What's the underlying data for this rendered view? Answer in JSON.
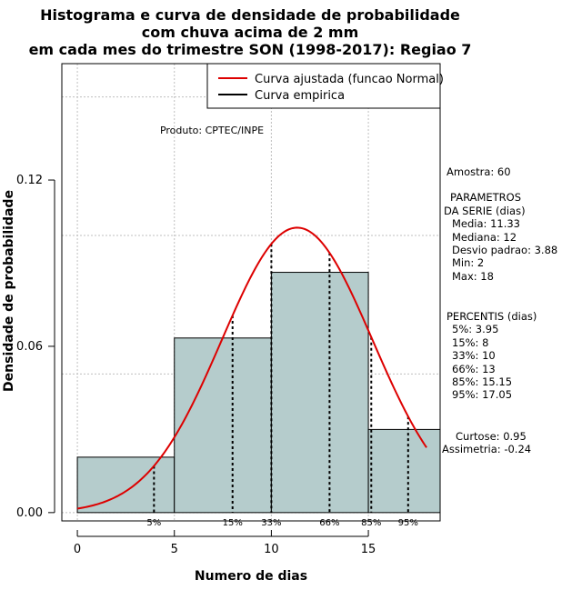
{
  "chart_data": {
    "type": "bar",
    "title": [
      "Histograma e curva de densidade de probabilidade",
      "com chuva acima de 2 mm",
      "em cada mes do trimestre SON (1998-2017): Regiao 7"
    ],
    "xlabel": "Numero de dias",
    "ylabel": "Densidade de probabilidade",
    "xlim": [
      -0.8,
      18.7
    ],
    "ylim": [
      -0.003,
      0.162
    ],
    "x_ticks": [
      0,
      5,
      10,
      15
    ],
    "y_ticks": [
      0.0,
      0.06,
      0.12
    ],
    "y_tick_labels": [
      "0.00",
      "0.06",
      "0.12"
    ],
    "grid": true,
    "legend_position": "top-right",
    "bins": [
      {
        "from": 0,
        "to": 5,
        "density": 0.02
      },
      {
        "from": 5,
        "to": 10,
        "density": 0.063
      },
      {
        "from": 10,
        "to": 15,
        "density": 0.0867
      },
      {
        "from": 15,
        "to": 18.7,
        "density": 0.03
      }
    ],
    "series": [
      {
        "name": "Curva ajustada (funcao Normal)",
        "color": "#dd0000",
        "distribution": "normal",
        "mean": 11.33,
        "sd": 3.88,
        "x_range": [
          0,
          18
        ]
      },
      {
        "name": "Curva empirica",
        "color": "#000000"
      }
    ],
    "percentile_lines": [
      {
        "label": "5%",
        "x": 3.95
      },
      {
        "label": "15%",
        "x": 8
      },
      {
        "label": "33%",
        "x": 10
      },
      {
        "label": "66%",
        "x": 13
      },
      {
        "label": "85%",
        "x": 15.15
      },
      {
        "label": "95%",
        "x": 17.05
      }
    ],
    "annotation": "Produto: CPTEC/INPE",
    "bar_color": "#b5cccc"
  },
  "stats": {
    "amostra": "Amostra: 60",
    "param_header_1": "PARAMETROS",
    "param_header_2": "DA SERIE (dias)",
    "media": "Media: 11.33",
    "mediana": "Mediana: 12",
    "desvio": "Desvio padrao: 3.88",
    "min": "Min: 2",
    "max": "Max: 18",
    "percentis_header": "PERCENTIS (dias)",
    "p5": "5%: 3.95",
    "p15": "15%: 8",
    "p33": "33%: 10",
    "p66": "66%: 13",
    "p85": "85%: 15.15",
    "p95": "95%: 17.05",
    "curtose": "Curtose: 0.95",
    "assimetria": "Assimetria: -0.24"
  }
}
